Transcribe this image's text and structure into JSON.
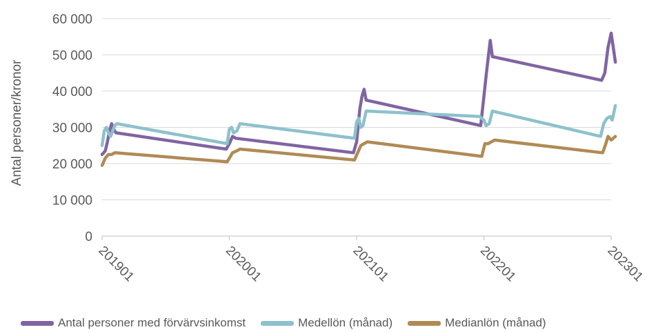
{
  "chart_data": {
    "type": "line",
    "ylabel": "Antal personer/kronor",
    "ylim": [
      0,
      60000
    ],
    "yticks": [
      0,
      10000,
      20000,
      30000,
      40000,
      50000,
      60000
    ],
    "ytick_labels": [
      "0",
      "10 000",
      "20 000",
      "30 000",
      "40 000",
      "50 000",
      "60 000"
    ],
    "xlim": [
      0,
      48
    ],
    "xticks": [
      0,
      12,
      24,
      36,
      48
    ],
    "xtick_labels": [
      "201901",
      "202001",
      "202101",
      "202201",
      "202301"
    ],
    "grid": true,
    "legend_position": "bottom",
    "series": [
      {
        "name": "Antal personer med förvärvsinkomst",
        "color": "#8064A2",
        "points": [
          [
            0,
            22500
          ],
          [
            0.3,
            23500
          ],
          [
            0.5,
            26000
          ],
          [
            0.7,
            29000
          ],
          [
            0.9,
            31000
          ],
          [
            1.1,
            29500
          ],
          [
            1.3,
            28500
          ],
          [
            11.7,
            24000
          ],
          [
            12,
            25500
          ],
          [
            12.3,
            27500
          ],
          [
            12.6,
            27000
          ],
          [
            23.7,
            23000
          ],
          [
            24,
            26000
          ],
          [
            24.3,
            35000
          ],
          [
            24.5,
            38500
          ],
          [
            24.7,
            40500
          ],
          [
            24.9,
            37500
          ],
          [
            35.7,
            30500
          ],
          [
            36,
            38500
          ],
          [
            36.2,
            44000
          ],
          [
            36.4,
            49000
          ],
          [
            36.6,
            54000
          ],
          [
            36.8,
            49500
          ],
          [
            47.1,
            43000
          ],
          [
            47.4,
            45000
          ],
          [
            47.7,
            52000
          ],
          [
            48,
            56000
          ],
          [
            48.2,
            52000
          ],
          [
            48.4,
            48000
          ]
        ]
      },
      {
        "name": "Medellön (månad)",
        "color": "#8DC1CC",
        "points": [
          [
            0,
            25000
          ],
          [
            0.2,
            29000
          ],
          [
            0.4,
            30000
          ],
          [
            0.6,
            28500
          ],
          [
            0.8,
            27500
          ],
          [
            1.0,
            29000
          ],
          [
            1.2,
            30500
          ],
          [
            1.4,
            31000
          ],
          [
            11.8,
            25500
          ],
          [
            12,
            29500
          ],
          [
            12.2,
            30000
          ],
          [
            12.4,
            28500
          ],
          [
            12.7,
            29000
          ],
          [
            13,
            31000
          ],
          [
            23.8,
            27000
          ],
          [
            24,
            31500
          ],
          [
            24.2,
            32500
          ],
          [
            24.4,
            30000
          ],
          [
            24.6,
            30500
          ],
          [
            24.9,
            34500
          ],
          [
            35.6,
            33000
          ],
          [
            35.8,
            32500
          ],
          [
            36,
            32000
          ],
          [
            36.2,
            30500
          ],
          [
            36.5,
            31000
          ],
          [
            36.8,
            34500
          ],
          [
            47,
            27500
          ],
          [
            47.3,
            31000
          ],
          [
            47.6,
            32500
          ],
          [
            47.9,
            33000
          ],
          [
            48.1,
            32000
          ],
          [
            48.4,
            36000
          ]
        ]
      },
      {
        "name": "Medianlön (månad)",
        "color": "#B08A55",
        "points": [
          [
            0,
            19500
          ],
          [
            0.3,
            21500
          ],
          [
            0.6,
            22500
          ],
          [
            0.9,
            22500
          ],
          [
            1.2,
            23000
          ],
          [
            11.8,
            20500
          ],
          [
            12,
            21500
          ],
          [
            12.3,
            23000
          ],
          [
            12.7,
            23500
          ],
          [
            13,
            24000
          ],
          [
            23.8,
            21000
          ],
          [
            24.1,
            23000
          ],
          [
            24.4,
            25000
          ],
          [
            24.7,
            25500
          ],
          [
            25,
            26000
          ],
          [
            35.8,
            22000
          ],
          [
            36.1,
            25500
          ],
          [
            36.4,
            25500
          ],
          [
            36.7,
            26000
          ],
          [
            37,
            26500
          ],
          [
            47.2,
            23000
          ],
          [
            47.5,
            25500
          ],
          [
            47.7,
            27500
          ],
          [
            48,
            26500
          ],
          [
            48.4,
            27500
          ]
        ]
      }
    ]
  }
}
